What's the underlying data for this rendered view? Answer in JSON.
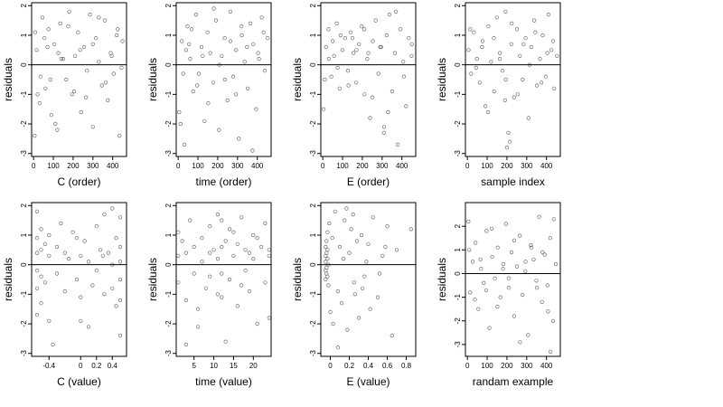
{
  "chart_data": [
    {
      "type": "scatter",
      "xlabel": "C (order)",
      "ylabel": "residuals",
      "xlim": [
        -10,
        470
      ],
      "ylim": [
        -3.1,
        2.1
      ],
      "xticks": [
        0,
        100,
        200,
        300,
        400
      ],
      "yticks": [
        -3,
        -2,
        -1,
        0,
        1,
        2
      ],
      "hline": 0,
      "x": [
        5,
        15,
        30,
        45,
        60,
        75,
        90,
        105,
        120,
        135,
        150,
        165,
        180,
        195,
        210,
        225,
        240,
        255,
        270,
        285,
        300,
        315,
        330,
        345,
        360,
        375,
        390,
        405,
        420,
        435,
        450,
        8,
        35,
        70,
        110,
        140,
        175,
        205,
        235,
        265,
        300,
        330,
        365,
        395,
        425,
        445,
        20,
        55,
        85,
        125
      ],
      "y": [
        -2.4,
        0.5,
        -1.3,
        1.6,
        -0.8,
        1.2,
        -1.7,
        0.7,
        -2.2,
        1.4,
        0.2,
        -0.5,
        1.8,
        -1.0,
        0.3,
        1.1,
        -1.6,
        0.6,
        -0.2,
        1.7,
        -2.1,
        0.9,
        0.1,
        -0.7,
        1.5,
        -1.2,
        0.4,
        -0.3,
        1.0,
        -2.4,
        0.8,
        1.1,
        -0.4,
        0.6,
        -2.0,
        0.2,
        1.3,
        -0.9,
        0.5,
        -1.1,
        0.7,
        1.6,
        -0.6,
        0.3,
        1.2,
        -0.1,
        -1.0,
        0.9,
        -0.5,
        0.4
      ]
    },
    {
      "type": "scatter",
      "xlabel": "time (order)",
      "ylabel": "residuals",
      "xlim": [
        -10,
        470
      ],
      "ylim": [
        -3.1,
        2.1
      ],
      "xticks": [
        0,
        100,
        200,
        300,
        400
      ],
      "yticks": [
        -3,
        -2,
        -1,
        0,
        1,
        2
      ],
      "hline": 0,
      "x": [
        5,
        18,
        32,
        47,
        61,
        76,
        90,
        104,
        118,
        133,
        148,
        162,
        177,
        191,
        206,
        220,
        235,
        249,
        264,
        278,
        293,
        307,
        322,
        336,
        351,
        365,
        380,
        394,
        409,
        423,
        438,
        452,
        12,
        40,
        68,
        96,
        124,
        152,
        180,
        208,
        236,
        264,
        292,
        320,
        348,
        376,
        404,
        432,
        25,
        55
      ],
      "y": [
        -1.6,
        0.8,
        -2.7,
        1.3,
        0.2,
        -0.9,
        1.7,
        -0.3,
        0.6,
        -1.9,
        1.1,
        0.4,
        -0.6,
        1.5,
        -2.2,
        0.3,
        0.9,
        -1.2,
        1.8,
        -0.4,
        0.5,
        -2.5,
        1.0,
        0.1,
        -0.8,
        1.4,
        0.7,
        -1.5,
        0.2,
        1.6,
        -0.2,
        0.9,
        -2.0,
        0.5,
        1.2,
        -0.7,
        0.3,
        -1.3,
        1.9,
        0.0,
        -0.5,
        0.8,
        -1.0,
        1.3,
        0.6,
        -2.9,
        0.4,
        1.1,
        -0.3,
        0.7
      ]
    },
    {
      "type": "scatter",
      "xlabel": "E (order)",
      "ylabel": "residuals",
      "xlim": [
        -10,
        470
      ],
      "ylim": [
        -3.1,
        2.1
      ],
      "xticks": [
        0,
        100,
        200,
        300,
        400
      ],
      "yticks": [
        -3,
        -2,
        -1,
        0,
        1,
        2
      ],
      "hline": 0,
      "x": [
        4,
        16,
        29,
        43,
        57,
        71,
        85,
        99,
        113,
        127,
        141,
        155,
        169,
        183,
        197,
        211,
        225,
        239,
        253,
        267,
        281,
        295,
        309,
        323,
        337,
        351,
        365,
        379,
        393,
        407,
        421,
        435,
        449,
        10,
        50,
        90,
        130,
        170,
        210,
        250,
        290,
        330,
        370,
        410,
        450,
        30,
        75,
        150,
        230,
        310
      ],
      "y": [
        -1.5,
        0.6,
        1.2,
        -0.4,
        0.3,
        1.4,
        -0.8,
        0.5,
        0.9,
        -0.2,
        1.1,
        0.4,
        -0.6,
        0.7,
        1.3,
        -1.0,
        0.2,
        -1.8,
        0.8,
        1.5,
        -0.3,
        0.6,
        -2.3,
        1.0,
        1.7,
        -0.9,
        0.4,
        -2.7,
        1.2,
        0.1,
        -1.4,
        0.9,
        0.3,
        -0.5,
        0.8,
        1.0,
        -0.7,
        0.5,
        1.2,
        -1.1,
        0.6,
        -1.6,
        1.8,
        -0.4,
        0.7,
        0.2,
        -0.1,
        0.9,
        0.4,
        -2.1
      ]
    },
    {
      "type": "scatter",
      "xlabel": "sample index",
      "ylabel": "residuals",
      "xlim": [
        -10,
        470
      ],
      "ylim": [
        -3.1,
        2.1
      ],
      "xticks": [
        0,
        100,
        200,
        300,
        400
      ],
      "yticks": [
        -3,
        -2,
        -1,
        0,
        1,
        2
      ],
      "hline": 0,
      "x": [
        6,
        19,
        33,
        48,
        62,
        77,
        91,
        106,
        120,
        135,
        149,
        164,
        178,
        193,
        207,
        222,
        236,
        251,
        265,
        280,
        294,
        309,
        323,
        338,
        352,
        367,
        381,
        396,
        410,
        425,
        439,
        453,
        14,
        44,
        74,
        104,
        134,
        164,
        194,
        224,
        254,
        284,
        314,
        344,
        374,
        404,
        434,
        200,
        215,
        190
      ],
      "y": [
        0.5,
        -0.3,
        1.1,
        0.2,
        -0.6,
        0.8,
        -1.4,
        1.3,
        0.1,
        -0.9,
        1.6,
        0.4,
        -0.2,
        1.8,
        -2.3,
        0.7,
        -1.1,
        1.2,
        0.3,
        -0.5,
        0.9,
        -1.8,
        0.6,
        1.5,
        -0.7,
        0.2,
        1.0,
        -0.4,
        1.7,
        0.5,
        -0.8,
        0.3,
        1.2,
        -0.1,
        0.6,
        -1.6,
        0.9,
        0.2,
        -0.5,
        1.4,
        -1.0,
        0.7,
        0.0,
        1.1,
        -0.6,
        0.4,
        0.8,
        -2.8,
        -2.6,
        -1.2
      ]
    },
    {
      "type": "scatter",
      "xlabel": "C (value)",
      "ylabel": "residuals",
      "xlim": [
        -0.62,
        0.58
      ],
      "ylim": [
        -3.1,
        2.1
      ],
      "xticks": [
        -0.4,
        0.0,
        0.2,
        0.4
      ],
      "yticks": [
        -3,
        -2,
        -1,
        0,
        1,
        2
      ],
      "hline": 0,
      "x": [
        -0.55,
        -0.55,
        -0.55,
        -0.55,
        -0.55,
        -0.55,
        -0.5,
        -0.5,
        -0.5,
        -0.5,
        -0.45,
        -0.45,
        -0.4,
        -0.4,
        -0.4,
        -0.3,
        -0.3,
        -0.25,
        -0.2,
        -0.2,
        -0.15,
        -0.1,
        -0.05,
        0.0,
        0.0,
        0.0,
        0.05,
        0.1,
        0.15,
        0.2,
        0.2,
        0.25,
        0.3,
        0.3,
        0.35,
        0.4,
        0.4,
        0.4,
        0.45,
        0.45,
        0.5,
        0.5,
        0.5,
        0.5,
        0.5,
        0.5,
        -0.35,
        0.1,
        -0.05,
        0.28
      ],
      "y": [
        1.8,
        0.9,
        0.4,
        -0.2,
        -0.8,
        -1.7,
        1.2,
        0.5,
        -0.4,
        -1.3,
        0.7,
        -0.6,
        1.0,
        0.3,
        -1.9,
        0.6,
        -0.3,
        1.4,
        0.4,
        -0.9,
        0.2,
        1.1,
        -0.5,
        0.3,
        -1.1,
        -1.9,
        0.8,
        0.1,
        -0.7,
        1.3,
        -0.2,
        0.5,
        -1.0,
        1.7,
        0.4,
        1.9,
        0.0,
        -0.8,
        0.9,
        -1.4,
        1.6,
        0.6,
        0.1,
        -0.5,
        -1.2,
        -2.4,
        -2.7,
        -2.1,
        0.9,
        0.3
      ]
    },
    {
      "type": "scatter",
      "xlabel": "time (value)",
      "ylabel": "residuals",
      "xlim": [
        0.5,
        24.5
      ],
      "ylim": [
        -3.1,
        2.1
      ],
      "xticks": [
        5,
        10,
        15,
        20
      ],
      "yticks": [
        -3,
        -2,
        -1,
        0,
        1,
        2
      ],
      "hline": 0,
      "x": [
        1,
        1,
        1,
        2,
        3,
        3,
        4,
        5,
        5,
        6,
        7,
        7,
        8,
        9,
        9,
        10,
        11,
        11,
        11,
        12,
        12,
        12,
        12,
        13,
        14,
        14,
        15,
        16,
        16,
        17,
        18,
        18,
        19,
        20,
        20,
        21,
        22,
        23,
        23,
        24,
        24,
        24,
        6,
        9,
        13,
        17,
        21,
        3,
        15,
        19
      ],
      "y": [
        1.1,
        0.3,
        -0.6,
        0.8,
        -1.2,
        0.4,
        1.5,
        -0.3,
        0.6,
        -2.1,
        0.9,
        0.1,
        -0.8,
        1.3,
        -0.4,
        0.5,
        1.7,
        0.2,
        -1.0,
        1.5,
        0.6,
        -0.3,
        -1.1,
        0.8,
        -0.5,
        1.2,
        0.3,
        -1.4,
        0.7,
        1.6,
        -0.2,
        0.5,
        -0.9,
        1.0,
        0.2,
        -2.0,
        0.6,
        1.4,
        -0.6,
        0.5,
        0.3,
        -1.8,
        -1.5,
        0.4,
        -2.6,
        -0.7,
        0.9,
        -2.7,
        1.1,
        0.4
      ]
    },
    {
      "type": "scatter",
      "xlabel": "E (value)",
      "ylabel": "residuals",
      "xlim": [
        -0.1,
        0.9
      ],
      "ylim": [
        -3.1,
        2.1
      ],
      "xticks": [
        0.0,
        0.2,
        0.4,
        0.6,
        0.8
      ],
      "yticks": [
        -3,
        -2,
        -1,
        0,
        1,
        2
      ],
      "hline": 0,
      "x": [
        -0.05,
        -0.05,
        -0.05,
        -0.05,
        -0.05,
        -0.04,
        -0.04,
        -0.04,
        -0.04,
        -0.03,
        -0.03,
        -0.03,
        -0.03,
        -0.02,
        -0.02,
        -0.01,
        0.0,
        0.02,
        0.05,
        0.08,
        0.1,
        0.12,
        0.15,
        0.18,
        0.2,
        0.22,
        0.25,
        0.28,
        0.3,
        0.33,
        0.36,
        0.4,
        0.45,
        0.5,
        0.55,
        0.6,
        0.65,
        0.7,
        0.08,
        0.14,
        0.24,
        0.34,
        0.42,
        0.58,
        0.85,
        0.03,
        0.17,
        0.26,
        0.38,
        0.52
      ],
      "y": [
        0.6,
        0.3,
        0.1,
        -0.2,
        -0.5,
        0.8,
        0.4,
        -0.1,
        -0.3,
        0.5,
        0.2,
        -0.4,
        1.1,
        0.0,
        -0.7,
        1.4,
        -1.6,
        0.9,
        1.8,
        -0.9,
        0.6,
        -1.3,
        1.5,
        -2.2,
        0.4,
        1.2,
        -0.6,
        0.8,
        -1.8,
        1.0,
        -0.4,
        0.7,
        1.6,
        -1.1,
        0.3,
        1.3,
        -2.4,
        0.5,
        -2.8,
        0.2,
        1.7,
        -0.8,
        -1.5,
        0.6,
        1.2,
        -2.0,
        1.9,
        -1.0,
        0.1,
        -0.3
      ]
    },
    {
      "type": "scatter",
      "xlabel": "randam example",
      "ylabel": "residuals",
      "xlim": [
        -10,
        470
      ],
      "ylim": [
        -3.5,
        3.0
      ],
      "xticks": [
        0,
        100,
        200,
        300,
        400
      ],
      "yticks": [
        -3,
        -2,
        -1,
        0,
        1,
        2
      ],
      "hline": 0,
      "x": [
        5,
        14,
        27,
        41,
        55,
        69,
        83,
        97,
        111,
        125,
        139,
        153,
        167,
        181,
        195,
        209,
        223,
        237,
        251,
        265,
        279,
        293,
        307,
        321,
        335,
        349,
        363,
        377,
        391,
        405,
        419,
        433,
        447,
        9,
        38,
        66,
        95,
        123,
        152,
        180,
        209,
        237,
        266,
        294,
        323,
        351,
        380,
        408,
        437,
        420
      ],
      "y": [
        2.2,
        -0.8,
        0.5,
        1.3,
        -1.5,
        0.2,
        -0.4,
        1.8,
        -2.3,
        0.7,
        -0.2,
        1.1,
        -1.0,
        0.4,
        2.1,
        -0.6,
        0.9,
        -1.8,
        0.3,
        1.6,
        -0.9,
        0.1,
        -2.6,
        1.2,
        0.6,
        -0.3,
        2.4,
        -1.2,
        0.8,
        -0.5,
        1.5,
        -2.0,
        0.4,
        1.0,
        -1.1,
        0.6,
        -0.7,
        1.9,
        -1.4,
        0.2,
        -0.2,
        1.4,
        -2.9,
        0.5,
        1.1,
        -0.6,
        0.9,
        -1.6,
        2.3,
        -3.3
      ]
    }
  ]
}
